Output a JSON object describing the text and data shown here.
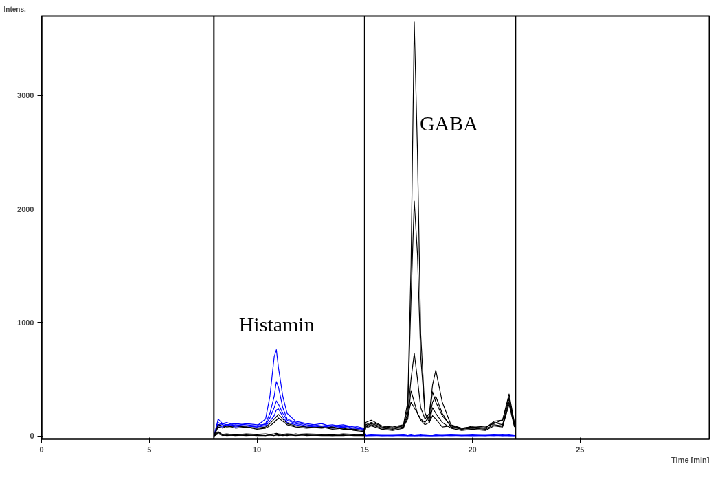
{
  "chart_data": {
    "type": "line",
    "xlabel": "Time [min]",
    "ylabel": "Intens.",
    "annotations": [
      "Histamin",
      "GABA"
    ],
    "x": [
      8.0,
      8.2,
      8.4,
      8.6,
      9.0,
      9.5,
      10.0,
      10.4,
      10.6,
      10.8,
      10.9,
      11.0,
      11.2,
      11.4,
      11.8,
      12.3,
      13.0,
      13.5,
      14.0,
      14.5,
      14.95,
      15.05,
      15.3,
      15.8,
      16.3,
      16.8,
      17.0,
      17.15,
      17.3,
      17.45,
      17.6,
      17.8,
      18.0,
      18.15,
      18.3,
      18.6,
      19.0,
      19.5,
      20.0,
      20.6,
      21.0,
      21.4,
      21.7,
      21.95
    ],
    "series": [
      {
        "color": "#0000ff",
        "values": [
          0,
          150,
          110,
          100,
          110,
          100,
          90,
          150,
          350,
          700,
          760,
          600,
          350,
          200,
          130,
          110,
          90,
          100,
          80,
          90,
          70,
          5,
          10,
          5,
          8,
          5,
          5,
          5,
          5,
          5,
          5,
          5,
          5,
          5,
          5,
          8,
          5,
          5,
          10,
          5,
          8,
          5,
          10,
          5
        ]
      },
      {
        "color": "#0000ff",
        "values": [
          0,
          120,
          100,
          90,
          100,
          90,
          80,
          110,
          200,
          350,
          480,
          430,
          250,
          150,
          120,
          100,
          80,
          90,
          100,
          80,
          60,
          5,
          8,
          5,
          5,
          10,
          5,
          5,
          5,
          8,
          5,
          5,
          5,
          5,
          10,
          5,
          5,
          8,
          5,
          5,
          10,
          5,
          5,
          5
        ]
      },
      {
        "color": "#0000ff",
        "values": [
          0,
          100,
          110,
          120,
          90,
          110,
          100,
          100,
          160,
          250,
          310,
          280,
          200,
          140,
          110,
          90,
          110,
          80,
          90,
          70,
          60,
          5,
          5,
          8,
          5,
          5,
          5,
          10,
          5,
          5,
          5,
          8,
          5,
          5,
          5,
          5,
          10,
          5,
          5,
          8,
          5,
          5,
          5,
          5
        ]
      },
      {
        "color": "#0000ff",
        "values": [
          0,
          90,
          80,
          100,
          80,
          90,
          80,
          90,
          130,
          180,
          230,
          240,
          170,
          120,
          100,
          80,
          90,
          70,
          80,
          60,
          50,
          5,
          5,
          5,
          5,
          8,
          5,
          5,
          5,
          5,
          10,
          5,
          5,
          5,
          5,
          5,
          8,
          5,
          5,
          5,
          5,
          10,
          5,
          5
        ]
      },
      {
        "color": "#000000",
        "values": [
          0,
          40,
          10,
          5,
          10,
          5,
          10,
          5,
          10,
          5,
          10,
          10,
          5,
          10,
          5,
          10,
          5,
          5,
          10,
          5,
          5,
          120,
          140,
          90,
          80,
          100,
          300,
          1500,
          3650,
          2500,
          900,
          200,
          120,
          180,
          150,
          80,
          90,
          70,
          80,
          70,
          130,
          140,
          370,
          120
        ]
      },
      {
        "color": "#000000",
        "values": [
          0,
          30,
          15,
          20,
          10,
          20,
          15,
          20,
          15,
          20,
          25,
          20,
          15,
          20,
          15,
          20,
          15,
          10,
          20,
          15,
          10,
          100,
          120,
          90,
          70,
          90,
          250,
          1200,
          2070,
          1600,
          700,
          200,
          150,
          300,
          350,
          200,
          80,
          60,
          90,
          80,
          110,
          140,
          340,
          110
        ]
      },
      {
        "color": "#000000",
        "values": [
          0,
          100,
          90,
          80,
          90,
          80,
          70,
          80,
          110,
          150,
          170,
          190,
          150,
          110,
          90,
          80,
          70,
          80,
          60,
          60,
          50,
          90,
          110,
          80,
          70,
          90,
          200,
          500,
          730,
          500,
          250,
          150,
          200,
          450,
          580,
          300,
          100,
          70,
          80,
          70,
          120,
          100,
          330,
          100
        ]
      },
      {
        "color": "#000000",
        "values": [
          0,
          80,
          70,
          90,
          70,
          80,
          60,
          70,
          90,
          120,
          140,
          160,
          130,
          100,
          80,
          70,
          80,
          60,
          70,
          50,
          40,
          80,
          100,
          70,
          60,
          80,
          150,
          400,
          300,
          200,
          150,
          120,
          180,
          390,
          300,
          180,
          90,
          60,
          70,
          60,
          100,
          90,
          300,
          90
        ]
      },
      {
        "color": "#000000",
        "values": [
          0,
          20,
          5,
          10,
          5,
          10,
          5,
          5,
          10,
          5,
          10,
          5,
          10,
          5,
          20,
          5,
          10,
          5,
          5,
          10,
          5,
          70,
          90,
          60,
          50,
          70,
          180,
          300,
          250,
          200,
          140,
          100,
          120,
          250,
          200,
          120,
          70,
          50,
          60,
          50,
          90,
          80,
          280,
          80
        ]
      }
    ],
    "ref_lines": [
      {
        "axis": "x",
        "value": 8,
        "color": "#000000"
      },
      {
        "axis": "x",
        "value": 15,
        "color": "#000000"
      },
      {
        "axis": "x",
        "value": 22,
        "color": "#000000"
      }
    ],
    "xlim": [
      0,
      31
    ],
    "ylim": [
      -25,
      3700
    ],
    "xticks": [
      0,
      5,
      10,
      15,
      20,
      25
    ],
    "yticks": [
      0,
      1000,
      2000,
      3000
    ],
    "grid": false
  }
}
